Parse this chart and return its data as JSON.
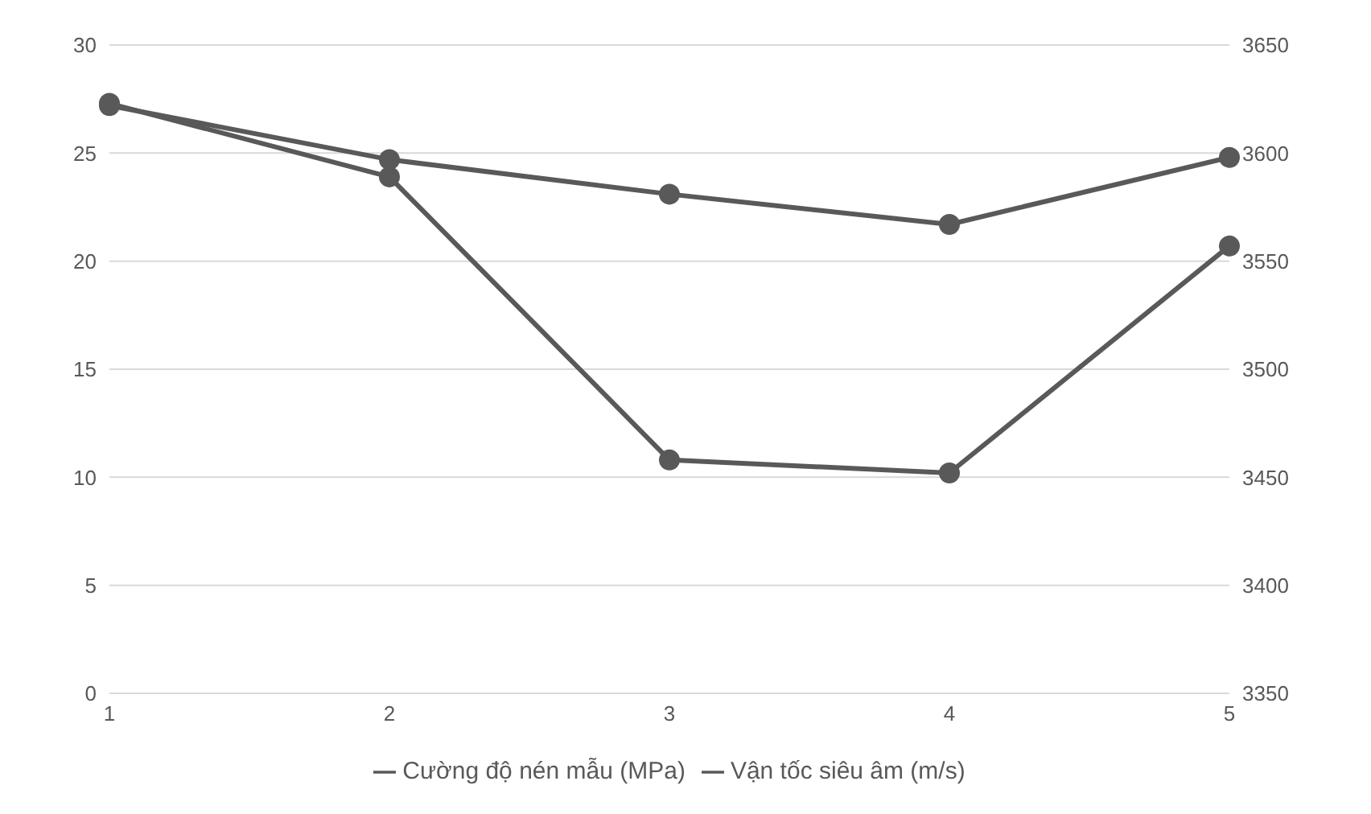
{
  "chart_data": {
    "type": "line",
    "categories": [
      "1",
      "2",
      "3",
      "4",
      "5"
    ],
    "series": [
      {
        "name": "Cường độ nén mẫu (MPa)",
        "color": "#595959",
        "values": [
          27.3,
          23.9,
          10.8,
          10.2,
          20.7
        ]
      },
      {
        "name": "Vận tốc siêu âm (m/s)",
        "color": "#595959",
        "values": [
          3622,
          3597,
          3581,
          3567,
          3598
        ],
        "axis": "y2"
      }
    ],
    "ylim": [
      0,
      30
    ],
    "yticks": [
      0,
      5,
      10,
      15,
      20,
      25,
      30
    ],
    "y2lim": [
      3350,
      3650
    ],
    "y2ticks": [
      3350,
      3400,
      3450,
      3500,
      3550,
      3600,
      3650
    ],
    "grid": "y",
    "legend": "bottom",
    "marker": "circle",
    "line_style": "solid"
  }
}
